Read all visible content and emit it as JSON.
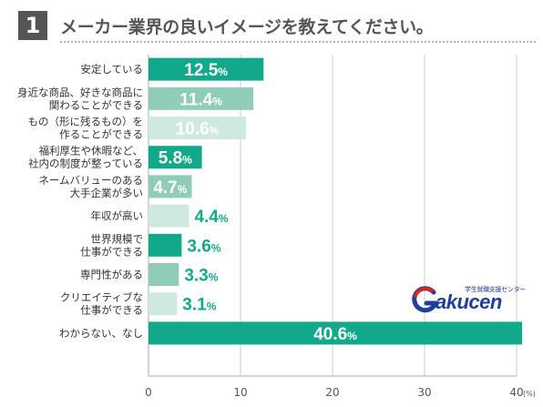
{
  "header": {
    "question_number": "1",
    "title": "メーカー業界の良いイメージを教えてください。"
  },
  "logo": {
    "wordmark": "akucen",
    "tagline": "学生就職支援センター",
    "colors": {
      "red": "#e2231a",
      "blue": "#1f3f99"
    }
  },
  "chart_data": {
    "type": "bar",
    "orientation": "horizontal",
    "categories": [
      [
        "安定している"
      ],
      [
        "身近な商品、好きな商品に",
        "関わることができる"
      ],
      [
        "もの（形に残るもの）を",
        "作ることができる"
      ],
      [
        "福利厚生や休暇など、",
        "社内の制度が整っている"
      ],
      [
        "ネームバリューのある",
        "大手企業が多い"
      ],
      [
        "年収が高い"
      ],
      [
        "世界規模で",
        "仕事ができる"
      ],
      [
        "専門性がある"
      ],
      [
        "クリエイティブな",
        "仕事ができる"
      ],
      [
        "わからない、なし"
      ]
    ],
    "values": [
      12.5,
      11.4,
      10.6,
      5.8,
      4.7,
      4.4,
      3.6,
      3.3,
      3.1,
      40.6
    ],
    "value_unit": "%",
    "bar_colors": [
      "#11a98a",
      "#8fcdb8",
      "#cfe9df",
      "#11a98a",
      "#8fcdb8",
      "#cfe9df",
      "#11a98a",
      "#8fcdb8",
      "#cfe9df",
      "#11a98a"
    ],
    "label_colors": [
      "#ffffff",
      "#ffffff",
      "#ffffff",
      "#ffffff",
      "#ffffff",
      "#11a98a",
      "#11a98a",
      "#11a98a",
      "#11a98a",
      "#ffffff"
    ],
    "xlim": [
      0,
      40
    ],
    "xticks": [
      0,
      10,
      20,
      30,
      40
    ],
    "xunit": "(%)",
    "grid": true
  }
}
